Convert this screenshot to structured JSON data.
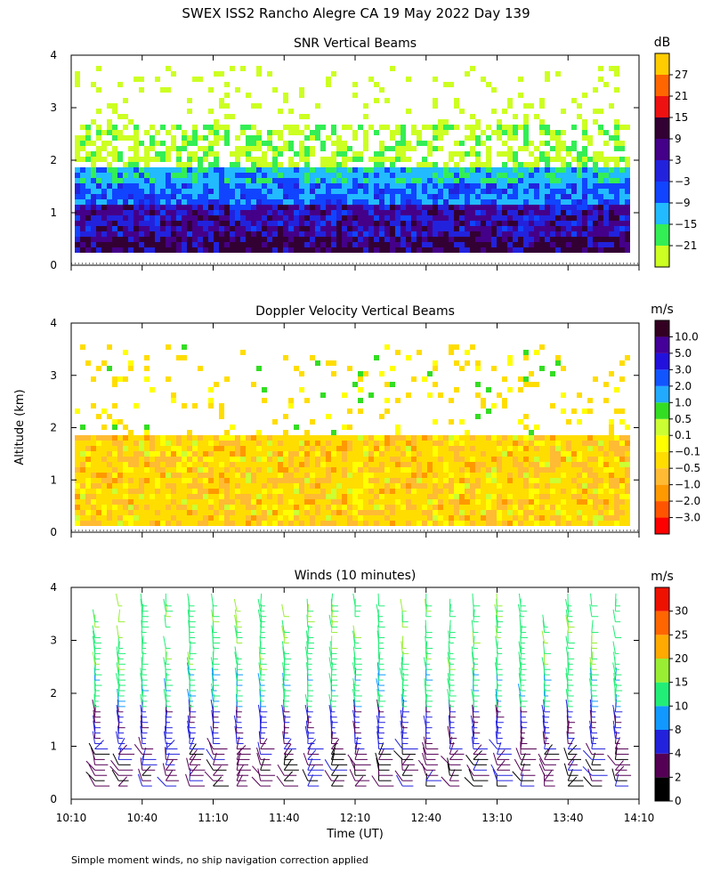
{
  "title": "SWEX ISS2 Rancho Alegre CA  19 May 2022 Day 139",
  "ylabel": "Altitude (km)",
  "xlabel": "Time (UT)",
  "footnote": "Simple moment winds, no ship navigation correction applied",
  "x_ticks": [
    "10:10",
    "10:40",
    "11:10",
    "11:40",
    "12:10",
    "12:40",
    "13:10",
    "13:40",
    "14:10"
  ],
  "y_ticks": [
    "0",
    "1",
    "2",
    "3",
    "4"
  ],
  "chart_data": [
    {
      "type": "heatmap",
      "title": "SNR Vertical Beams",
      "xlabel": "Time (UT)",
      "ylabel": "Altitude (km)",
      "xlim": [
        "10:10",
        "14:10"
      ],
      "ylim": [
        0,
        4
      ],
      "colorbar": {
        "unit": "dB",
        "ticks": [
          "27",
          "21",
          "15",
          "9",
          "3",
          "−3",
          "−9",
          "−15",
          "−21"
        ],
        "colors": [
          "#ccff22",
          "#33ee55",
          "#22bbff",
          "#1144ff",
          "#2222dd",
          "#440088",
          "#330033",
          "#ee1111",
          "#ff6600",
          "#ffcc00"
        ]
      },
      "layers": [
        {
          "range_km": [
            0.15,
            0.6
          ],
          "level": "9 dB (strong)"
        },
        {
          "range_km": [
            0.6,
            1.2
          ],
          "level": "3 to 9 dB"
        },
        {
          "range_km": [
            1.2,
            1.7
          ],
          "level": "−3 dB"
        },
        {
          "range_km": [
            1.7,
            2.0
          ],
          "level": "−9 dB"
        },
        {
          "range_km": [
            2.0,
            2.7
          ],
          "level": "−15 to −21 dB (sparse)"
        },
        {
          "range_km": [
            2.7,
            3.8
          ],
          "level": "−21 dB (patchy)"
        }
      ]
    },
    {
      "type": "heatmap",
      "title": "Doppler Velocity Vertical Beams",
      "xlabel": "Time (UT)",
      "ylabel": "Altitude (km)",
      "xlim": [
        "10:10",
        "14:10"
      ],
      "ylim": [
        0,
        4
      ],
      "colorbar": {
        "unit": "m/s",
        "ticks": [
          "10.0",
          "5.0",
          "3.0",
          "2.0",
          "1.0",
          "0.5",
          "0.1",
          "−0.1",
          "−0.5",
          "−1.0",
          "−2.0",
          "−3.0"
        ],
        "colors": [
          "#ff0000",
          "#ff5500",
          "#ff9900",
          "#ffbb33",
          "#ffdd00",
          "#ffff00",
          "#ccff33",
          "#33dd22",
          "#22aaff",
          "#1155ff",
          "#2211dd",
          "#440099",
          "#330022"
        ]
      },
      "layers": [
        {
          "range_km": [
            0.15,
            1.95
          ],
          "level": "−0.1 to −1.0 m/s (dominant)"
        },
        {
          "range_km": [
            1.95,
            3.6
          ],
          "level": "scattered, −0.5 to 0.5 m/s"
        }
      ]
    },
    {
      "type": "wind_barbs",
      "title": "Winds (10 minutes)",
      "xlabel": "Time (UT)",
      "ylabel": "Altitude (km)",
      "xlim": [
        "10:10",
        "14:10"
      ],
      "ylim": [
        0,
        4
      ],
      "colorbar": {
        "unit": "m/s",
        "ticks": [
          "30",
          "25",
          "20",
          "15",
          "10",
          "8",
          "4",
          "2",
          "0"
        ],
        "colors": [
          "#000000",
          "#550055",
          "#2222dd",
          "#1199ff",
          "#22ee77",
          "#99ee33",
          "#ffaa00",
          "#ff6600",
          "#ee1100"
        ]
      },
      "profile_times": [
        "10:20",
        "10:30",
        "10:40",
        "10:50",
        "11:00",
        "11:10",
        "11:20",
        "11:30",
        "11:40",
        "11:50",
        "12:00",
        "12:10",
        "12:20",
        "12:30",
        "12:40",
        "12:50",
        "13:00",
        "13:10",
        "13:20",
        "13:30",
        "13:40",
        "13:50",
        "14:00"
      ],
      "speed_by_altitude": [
        {
          "range_km": [
            0.2,
            1.0
          ],
          "speed": "0–8 m/s"
        },
        {
          "range_km": [
            1.0,
            1.7
          ],
          "speed": "4–8 m/s"
        },
        {
          "range_km": [
            1.7,
            2.4
          ],
          "speed": "10–15 m/s"
        },
        {
          "range_km": [
            2.4,
            3.8
          ],
          "speed": "15–20 m/s"
        }
      ]
    }
  ]
}
